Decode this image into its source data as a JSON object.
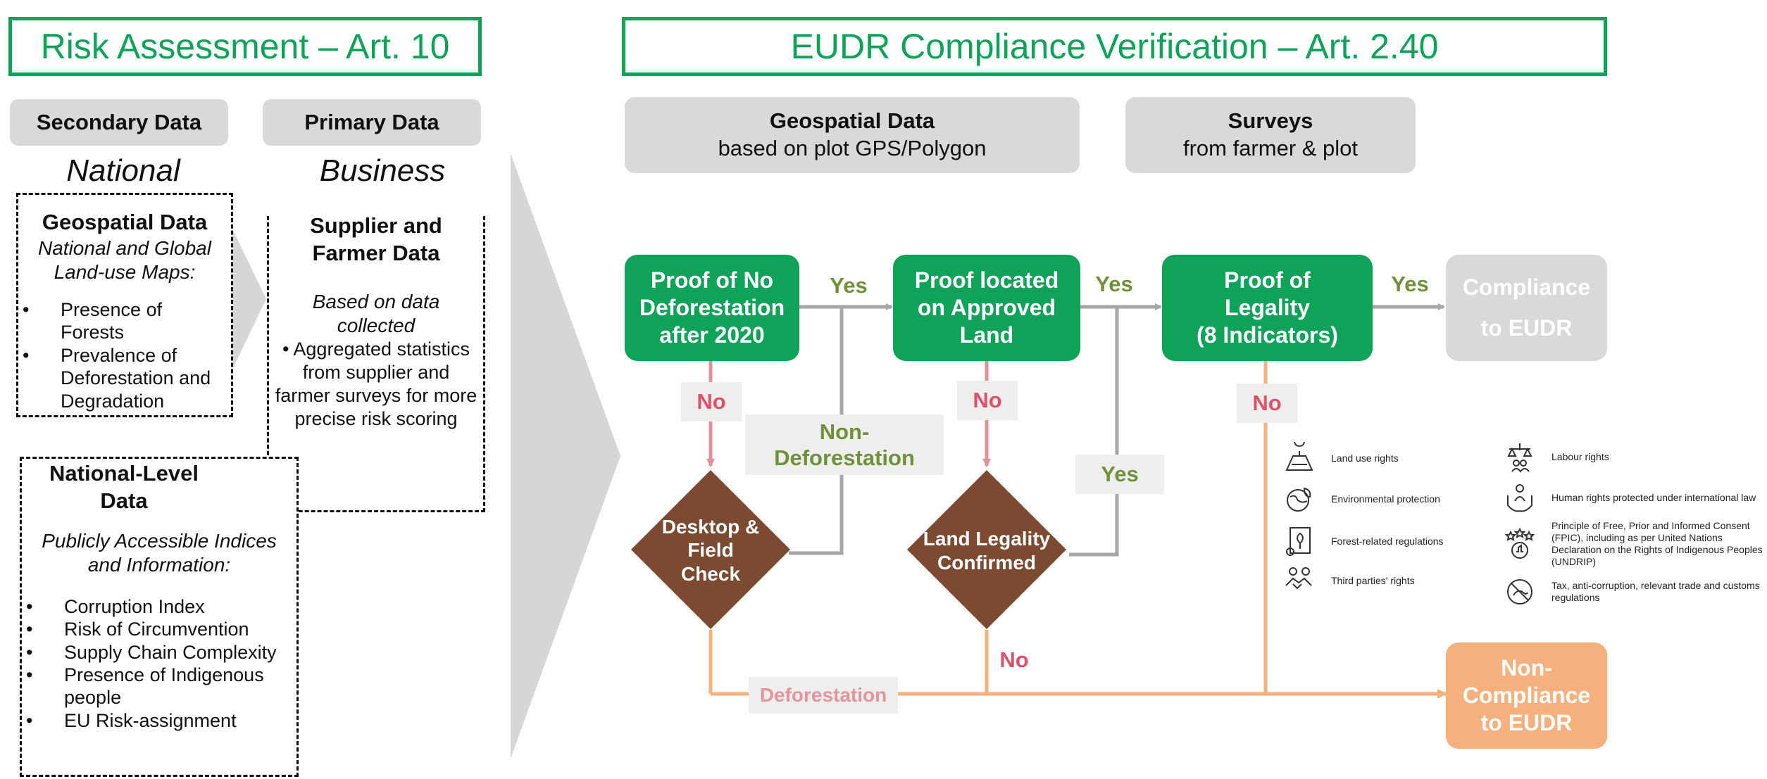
{
  "left_title": "Risk Assessment – Art. 10",
  "right_title": "EUDR Compliance Verification – Art. 2.40",
  "secondary_header": "Secondary Data",
  "primary_header": "Primary Data",
  "national_label": "National",
  "business_label": "Business",
  "geo_box": {
    "title": "Geospatial Data",
    "subtitle_lines": [
      "National and Global",
      "Land-use Maps:"
    ],
    "bullets": [
      "Presence of Forests",
      "Prevalence of Deforestation and Degradation"
    ]
  },
  "supplier_box": {
    "title_lines": [
      "Supplier and",
      "Farmer Data"
    ],
    "subtitle_lines": [
      "Based on data",
      "collected"
    ],
    "bullet": "Aggregated statistics from supplier and farmer surveys  for more precise risk scoring"
  },
  "national_box": {
    "title_lines": [
      "National-Level",
      "Data"
    ],
    "subtitle_lines": [
      "Publicly Accessible Indices",
      "and Information:"
    ],
    "bullets": [
      "Corruption Index",
      "Risk of Circumvention",
      "Supply Chain Complexity",
      "Presence of Indigenous people",
      "EU Risk-assignment"
    ]
  },
  "geo_header": {
    "title": "Geospatial Data",
    "subtitle": "based on plot GPS/Polygon"
  },
  "survey_header": {
    "title": "Surveys",
    "subtitle": "from farmer & plot"
  },
  "steps": {
    "no_deforestation": [
      "Proof of No",
      "Deforestation",
      "after 2020"
    ],
    "approved_land": [
      "Proof  located",
      "on Approved",
      "Land"
    ],
    "legality": [
      "Proof of",
      "Legality",
      "(8 Indicators)"
    ]
  },
  "compliance": [
    "Compliance",
    "to EUDR"
  ],
  "non_compliance": [
    "Non-",
    "Compliance",
    "to EUDR"
  ],
  "diamonds": {
    "desktop_check": [
      "Desktop &",
      "Field",
      "Check"
    ],
    "land_legality": [
      "Land Legality",
      "Confirmed"
    ]
  },
  "labels": {
    "yes": "Yes",
    "no": "No",
    "non_deforestation": [
      "Non-",
      "Deforestation"
    ],
    "deforestation": "Deforestation"
  },
  "legality_indicators": [
    {
      "icon": "land-use-icon",
      "text": "Land use rights"
    },
    {
      "icon": "environment-icon",
      "text": "Environmental protection"
    },
    {
      "icon": "forest-regulation-icon",
      "text": "Forest-related regulations"
    },
    {
      "icon": "handshake-icon",
      "text": "Third parties' rights"
    },
    {
      "icon": "labour-rights-icon",
      "text": "Labour rights"
    },
    {
      "icon": "human-rights-icon",
      "text": "Human rights protected under international law"
    },
    {
      "icon": "fpic-icon",
      "text": "Principle of Free, Prior and Informed Consent (FPIC), including as per United Nations Declaration on the Rights of Indigenous Peoples (UNDRIP)"
    },
    {
      "icon": "anti-corruption-icon",
      "text": "Tax, anti-corruption, relevant trade and customs regulations"
    }
  ],
  "colors": {
    "green": "#0fa35a",
    "brown": "#7b4a30",
    "orange": "#f5b07e",
    "grey": "#d9d9d9",
    "yes_green": "#70913a",
    "no_red": "#e0506a"
  }
}
